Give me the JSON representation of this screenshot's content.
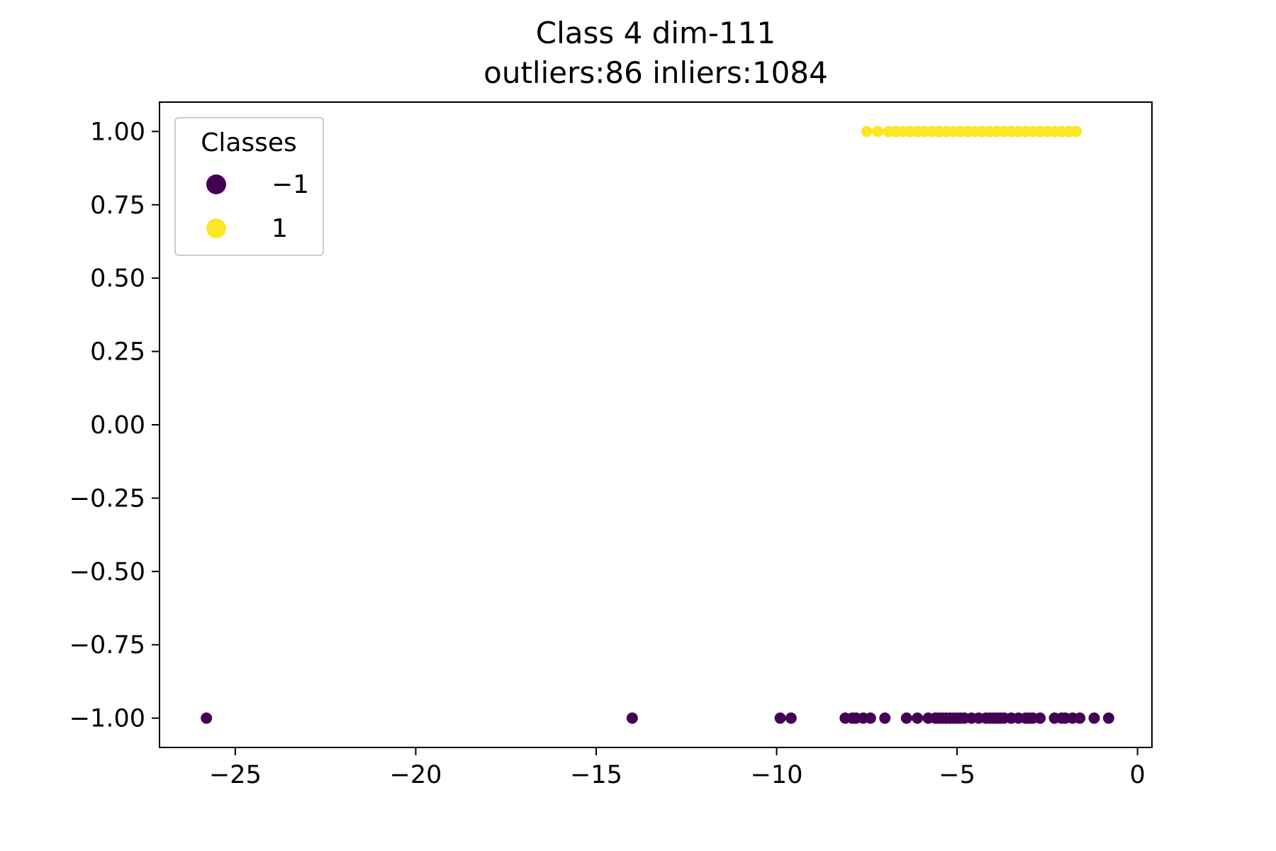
{
  "chart_data": {
    "type": "scatter",
    "title": "Class 4 dim-111",
    "subtitle": "outliers:86  inliers:1084",
    "xlabel": "",
    "ylabel": "",
    "xlim": [
      -27.1,
      0.4
    ],
    "ylim": [
      -1.1,
      1.1
    ],
    "x_ticks": [
      -25,
      -20,
      -15,
      -10,
      -5,
      0
    ],
    "x_tick_labels": [
      "−25",
      "−20",
      "−15",
      "−10",
      "−5",
      "0"
    ],
    "y_ticks": [
      1.0,
      0.75,
      0.5,
      0.25,
      0.0,
      -0.25,
      -0.5,
      -0.75,
      -1.0
    ],
    "y_tick_labels": [
      "1.00",
      "0.75",
      "0.50",
      "0.25",
      "0.00",
      "−0.25",
      "−0.50",
      "−0.75",
      "−1.00"
    ],
    "grid": false,
    "legend": {
      "title": "Classes",
      "placement": "top-left",
      "entries": [
        {
          "label": "−1",
          "color": "#440154"
        },
        {
          "label": "1",
          "color": "#fde725"
        }
      ]
    },
    "series": [
      {
        "class": -1,
        "color": "#440154",
        "points": [
          {
            "x": -25.8,
            "y": -1
          },
          {
            "x": -14.0,
            "y": -1
          },
          {
            "x": -9.9,
            "y": -1
          },
          {
            "x": -9.6,
            "y": -1
          },
          {
            "x": -8.1,
            "y": -1
          },
          {
            "x": -7.9,
            "y": -1
          },
          {
            "x": -7.8,
            "y": -1
          },
          {
            "x": -7.6,
            "y": -1
          },
          {
            "x": -7.4,
            "y": -1
          },
          {
            "x": -7.0,
            "y": -1
          },
          {
            "x": -6.4,
            "y": -1
          },
          {
            "x": -6.1,
            "y": -1
          },
          {
            "x": -5.8,
            "y": -1
          },
          {
            "x": -5.6,
            "y": -1
          },
          {
            "x": -5.5,
            "y": -1
          },
          {
            "x": -5.4,
            "y": -1
          },
          {
            "x": -5.3,
            "y": -1
          },
          {
            "x": -5.2,
            "y": -1
          },
          {
            "x": -5.1,
            "y": -1
          },
          {
            "x": -5.0,
            "y": -1
          },
          {
            "x": -4.9,
            "y": -1
          },
          {
            "x": -4.8,
            "y": -1
          },
          {
            "x": -4.6,
            "y": -1
          },
          {
            "x": -4.4,
            "y": -1
          },
          {
            "x": -4.2,
            "y": -1
          },
          {
            "x": -4.1,
            "y": -1
          },
          {
            "x": -4.0,
            "y": -1
          },
          {
            "x": -3.9,
            "y": -1
          },
          {
            "x": -3.8,
            "y": -1
          },
          {
            "x": -3.7,
            "y": -1
          },
          {
            "x": -3.5,
            "y": -1
          },
          {
            "x": -3.3,
            "y": -1
          },
          {
            "x": -3.1,
            "y": -1
          },
          {
            "x": -3.0,
            "y": -1
          },
          {
            "x": -2.9,
            "y": -1
          },
          {
            "x": -2.7,
            "y": -1
          },
          {
            "x": -2.3,
            "y": -1
          },
          {
            "x": -2.1,
            "y": -1
          },
          {
            "x": -2.0,
            "y": -1
          },
          {
            "x": -1.8,
            "y": -1
          },
          {
            "x": -1.6,
            "y": -1
          },
          {
            "x": -1.2,
            "y": -1
          },
          {
            "x": -0.8,
            "y": -1
          }
        ]
      },
      {
        "class": 1,
        "color": "#fde725",
        "points": [
          {
            "x": -7.5,
            "y": 1
          },
          {
            "x": -7.2,
            "y": 1
          },
          {
            "x": -6.9,
            "y": 1
          },
          {
            "x": -6.7,
            "y": 1
          },
          {
            "x": -6.5,
            "y": 1
          },
          {
            "x": -6.3,
            "y": 1
          },
          {
            "x": -6.1,
            "y": 1
          },
          {
            "x": -5.9,
            "y": 1
          },
          {
            "x": -5.7,
            "y": 1
          },
          {
            "x": -5.5,
            "y": 1
          },
          {
            "x": -5.3,
            "y": 1
          },
          {
            "x": -5.1,
            "y": 1
          },
          {
            "x": -4.9,
            "y": 1
          },
          {
            "x": -4.7,
            "y": 1
          },
          {
            "x": -4.5,
            "y": 1
          },
          {
            "x": -4.3,
            "y": 1
          },
          {
            "x": -4.1,
            "y": 1
          },
          {
            "x": -3.9,
            "y": 1
          },
          {
            "x": -3.7,
            "y": 1
          },
          {
            "x": -3.5,
            "y": 1
          },
          {
            "x": -3.3,
            "y": 1
          },
          {
            "x": -3.1,
            "y": 1
          },
          {
            "x": -2.9,
            "y": 1
          },
          {
            "x": -2.7,
            "y": 1
          },
          {
            "x": -2.5,
            "y": 1
          },
          {
            "x": -2.3,
            "y": 1
          },
          {
            "x": -2.1,
            "y": 1
          },
          {
            "x": -1.9,
            "y": 1
          },
          {
            "x": -1.7,
            "y": 1
          }
        ]
      }
    ]
  }
}
